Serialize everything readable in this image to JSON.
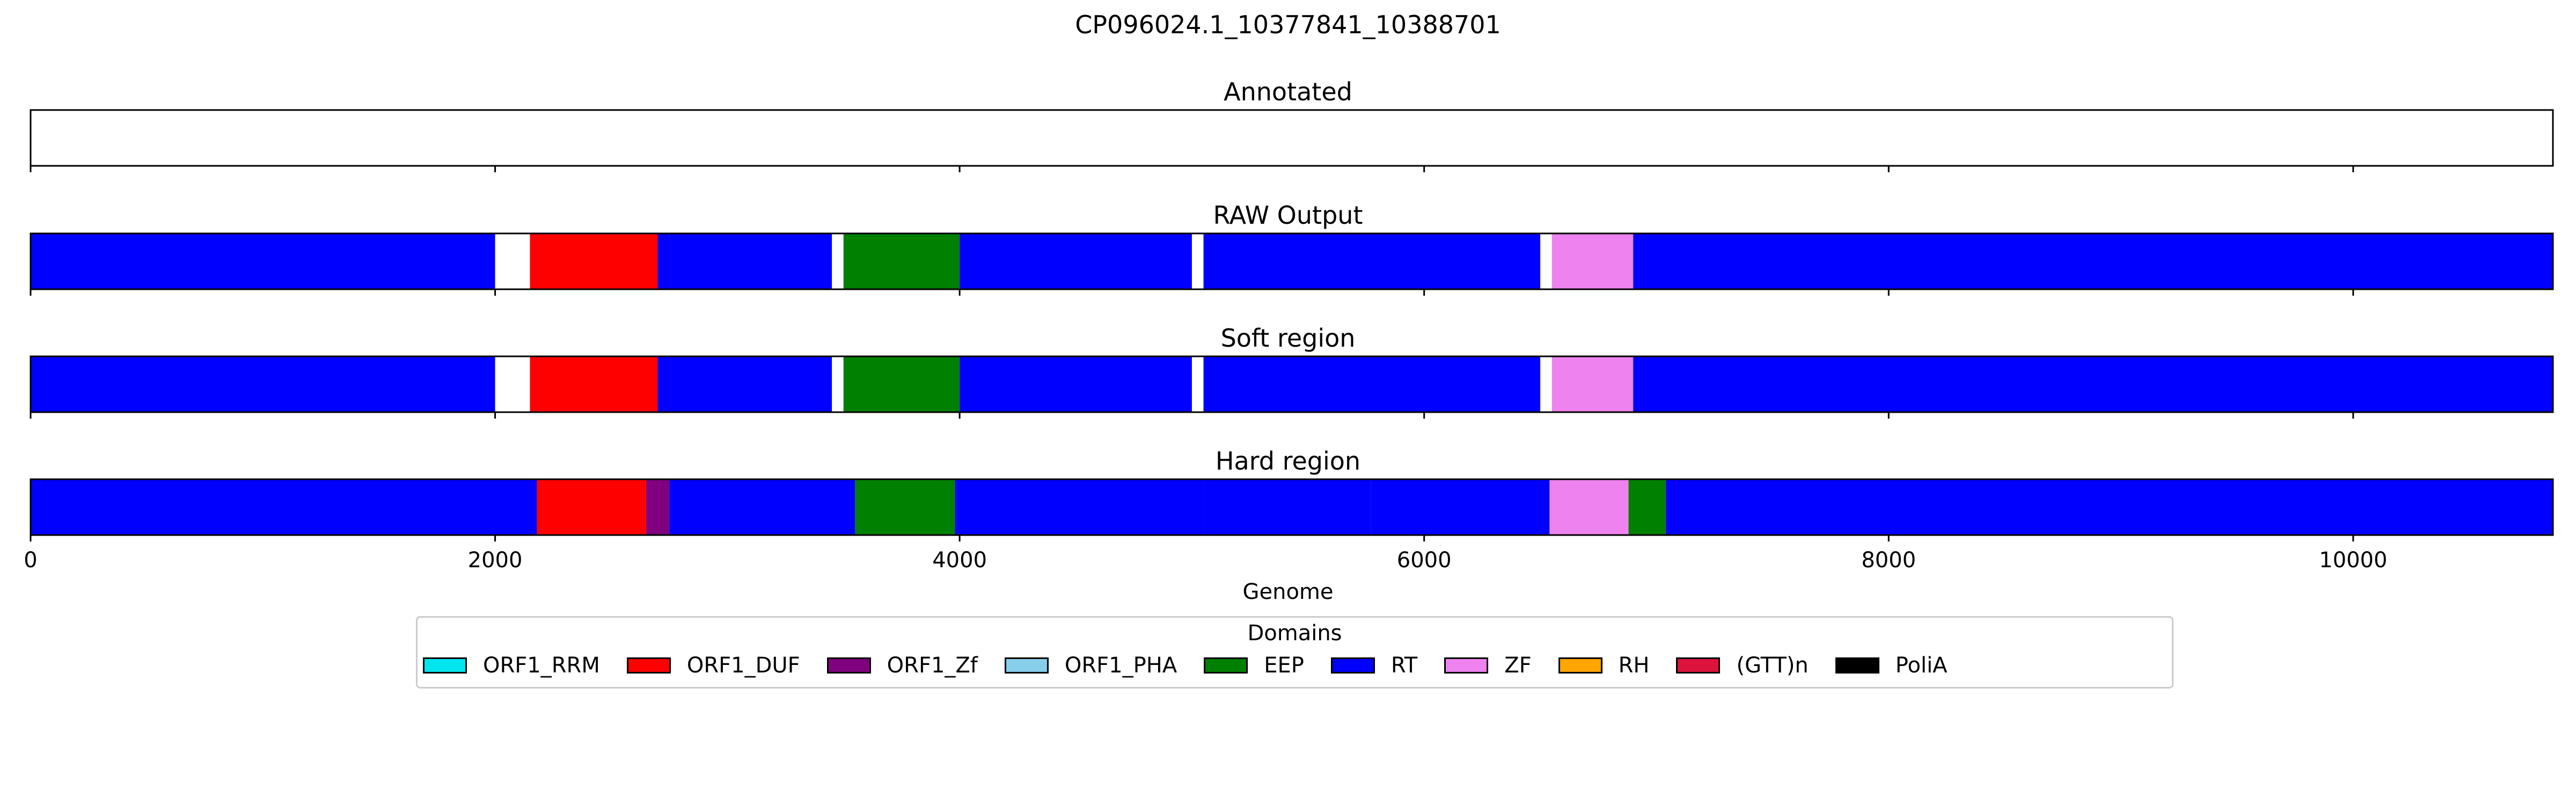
{
  "chart_data": {
    "type": "bar",
    "title": "CP096024.1_10377841_10388701",
    "xlabel": "Genome",
    "xlim": [
      0,
      10860
    ],
    "xticks": [
      0,
      2000,
      4000,
      6000,
      8000,
      10000
    ],
    "xtick_labels": [
      "0",
      "2000",
      "4000",
      "6000",
      "8000",
      "10000"
    ],
    "grid": false,
    "legend": {
      "title": "Domains",
      "placement": "bottom-center",
      "entries": [
        {
          "name": "ORF1_RRM",
          "color": "#00e5ee"
        },
        {
          "name": "ORF1_DUF",
          "color": "#ff0000"
        },
        {
          "name": "ORF1_Zf",
          "color": "#800080"
        },
        {
          "name": "ORF1_PHA",
          "color": "#87ceeb"
        },
        {
          "name": "EEP",
          "color": "#008000"
        },
        {
          "name": "RT",
          "color": "#0000ff"
        },
        {
          "name": "ZF",
          "color": "#ee82ee"
        },
        {
          "name": "RH",
          "color": "#ffa500"
        },
        {
          "name": "(GTT)n",
          "color": "#dc143c"
        },
        {
          "name": "PoliA",
          "color": "#000000"
        }
      ]
    },
    "panels": [
      {
        "title": "Annotated",
        "segments": []
      },
      {
        "title": "RAW Output",
        "segments": [
          {
            "start": 0,
            "end": 2000,
            "domain": "RT"
          },
          {
            "start": 2150,
            "end": 2700,
            "domain": "ORF1_DUF"
          },
          {
            "start": 2700,
            "end": 3450,
            "domain": "RT"
          },
          {
            "start": 3500,
            "end": 4000,
            "domain": "EEP"
          },
          {
            "start": 4000,
            "end": 5000,
            "domain": "RT"
          },
          {
            "start": 5050,
            "end": 5750,
            "domain": "RT"
          },
          {
            "start": 5750,
            "end": 6500,
            "domain": "RT"
          },
          {
            "start": 6550,
            "end": 6900,
            "domain": "ZF"
          },
          {
            "start": 6900,
            "end": 10860,
            "domain": "RT"
          }
        ]
      },
      {
        "title": "Soft region",
        "segments": [
          {
            "start": 0,
            "end": 2000,
            "domain": "RT"
          },
          {
            "start": 2150,
            "end": 2700,
            "domain": "ORF1_DUF"
          },
          {
            "start": 2700,
            "end": 3450,
            "domain": "RT"
          },
          {
            "start": 3500,
            "end": 4000,
            "domain": "EEP"
          },
          {
            "start": 4000,
            "end": 5000,
            "domain": "RT"
          },
          {
            "start": 5050,
            "end": 5750,
            "domain": "RT"
          },
          {
            "start": 5750,
            "end": 6500,
            "domain": "RT"
          },
          {
            "start": 6550,
            "end": 6900,
            "domain": "ZF"
          },
          {
            "start": 6900,
            "end": 10860,
            "domain": "RT"
          }
        ]
      },
      {
        "title": "Hard region",
        "segments": [
          {
            "start": 0,
            "end": 2180,
            "domain": "RT"
          },
          {
            "start": 2180,
            "end": 2650,
            "domain": "ORF1_DUF"
          },
          {
            "start": 2650,
            "end": 2750,
            "domain": "ORF1_Zf"
          },
          {
            "start": 2750,
            "end": 3550,
            "domain": "RT"
          },
          {
            "start": 3550,
            "end": 3980,
            "domain": "EEP"
          },
          {
            "start": 3980,
            "end": 5050,
            "domain": "RT"
          },
          {
            "start": 5050,
            "end": 5770,
            "domain": "RT"
          },
          {
            "start": 5770,
            "end": 6540,
            "domain": "RT"
          },
          {
            "start": 6540,
            "end": 6880,
            "domain": "ZF"
          },
          {
            "start": 6880,
            "end": 7040,
            "domain": "EEP"
          },
          {
            "start": 7040,
            "end": 10860,
            "domain": "RT"
          }
        ]
      }
    ]
  }
}
